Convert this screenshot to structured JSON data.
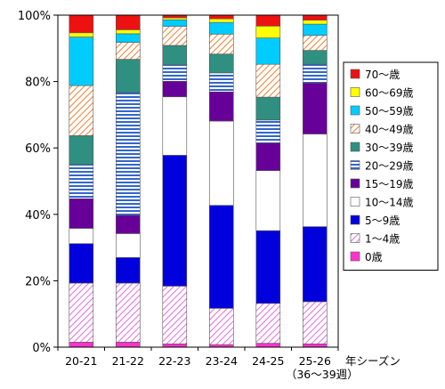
{
  "chart_data": {
    "type": "bar",
    "stacked": true,
    "normalized": true,
    "categories": [
      "20-21",
      "21-22",
      "22-23",
      "23-24",
      "24-25",
      "25-26"
    ],
    "category_sublabels": [
      "",
      "",
      "",
      "",
      "",
      "（36～39週）"
    ],
    "x_axis_title": "年シーズン",
    "y_ticks": [
      "0%",
      "20%",
      "40%",
      "60%",
      "80%",
      "100%"
    ],
    "ylim": [
      0,
      100
    ],
    "grid": false,
    "legend_position": "right",
    "series": [
      {
        "name": "0歳",
        "color": "#ff33cc",
        "pattern": "solid",
        "values": [
          1.5,
          1.5,
          1.0,
          0.8,
          1.2,
          1.0
        ]
      },
      {
        "name": "1～4歳",
        "color": "#e36be0",
        "pattern": "diagonal",
        "values": [
          17.8,
          17.8,
          17.4,
          10.9,
          12.0,
          12.7
        ]
      },
      {
        "name": "5～9歳",
        "color": "#0000dd",
        "pattern": "solid",
        "values": [
          11.9,
          7.7,
          39.4,
          31.0,
          21.9,
          22.6
        ]
      },
      {
        "name": "10～14歳",
        "color": "#ffffff",
        "pattern": "solid",
        "values": [
          4.6,
          7.2,
          17.6,
          25.4,
          18.1,
          27.9
        ]
      },
      {
        "name": "15～19歳",
        "color": "#660099",
        "pattern": "solid",
        "values": [
          8.9,
          5.5,
          4.7,
          8.8,
          8.3,
          15.4
        ]
      },
      {
        "name": "20～29歳",
        "color": "#3366cc",
        "pattern": "horizontal",
        "values": [
          10.3,
          37.0,
          4.9,
          5.7,
          6.9,
          5.6
        ]
      },
      {
        "name": "30～39歳",
        "color": "#2f8f80",
        "pattern": "solid",
        "values": [
          8.7,
          10.0,
          5.9,
          5.7,
          6.9,
          4.2
        ]
      },
      {
        "name": "40～49歳",
        "color": "#f08030",
        "pattern": "diagonal",
        "values": [
          15.1,
          5.1,
          5.7,
          6.0,
          9.9,
          4.5
        ]
      },
      {
        "name": "50～59歳",
        "color": "#00ccff",
        "pattern": "solid",
        "values": [
          14.6,
          2.6,
          2.0,
          3.5,
          7.9,
          3.4
        ]
      },
      {
        "name": "60～69歳",
        "color": "#ffff00",
        "pattern": "solid",
        "values": [
          1.3,
          1.2,
          0.6,
          1.1,
          3.6,
          1.2
        ]
      },
      {
        "name": "70～歳",
        "color": "#ee1111",
        "pattern": "solid",
        "values": [
          5.3,
          4.4,
          0.8,
          1.1,
          3.3,
          1.5
        ]
      }
    ]
  }
}
